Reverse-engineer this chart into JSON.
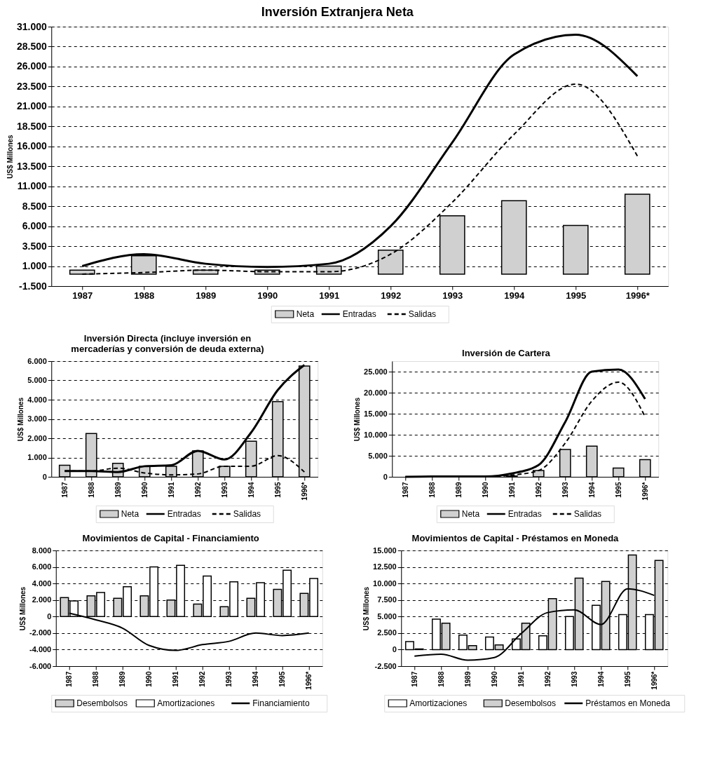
{
  "chart_data": [
    {
      "type": "bar",
      "title": "Inversión Extranjera Neta",
      "ylabel": "US$ Millones",
      "categories": [
        "1987",
        "1988",
        "1989",
        "1990",
        "1991",
        "1992",
        "1993",
        "1994",
        "1995",
        "1996*"
      ],
      "ylim": [
        -1500,
        31000
      ],
      "yticks": [
        {
          "value": -1500,
          "label": "-1.500"
        },
        {
          "value": 1000,
          "label": "1.000"
        },
        {
          "value": 3500,
          "label": "3.500"
        },
        {
          "value": 6000,
          "label": "6.000"
        },
        {
          "value": 8500,
          "label": "8.500"
        },
        {
          "value": 11000,
          "label": "11.000"
        },
        {
          "value": 13500,
          "label": "13.500"
        },
        {
          "value": 16000,
          "label": "16.000"
        },
        {
          "value": 18500,
          "label": "18.500"
        },
        {
          "value": 21000,
          "label": "21.000"
        },
        {
          "value": 23500,
          "label": "23.500"
        },
        {
          "value": 26000,
          "label": "26.000"
        },
        {
          "value": 28500,
          "label": "28.500"
        },
        {
          "value": 31000,
          "label": "31.000"
        }
      ],
      "grid": "y",
      "legend": "bottom",
      "series": [
        {
          "name": "Neta",
          "type": "bar",
          "color": "#d0d0d0",
          "values": [
            500,
            2300,
            500,
            500,
            1000,
            3000,
            7300,
            9200,
            6100,
            10000
          ]
        },
        {
          "name": "Entradas",
          "type": "line",
          "color": "#000000",
          "line_style": "solid",
          "values": [
            1000,
            2500,
            1300,
            900,
            1300,
            6000,
            16500,
            27500,
            30000,
            24800
          ]
        },
        {
          "name": "Salidas",
          "type": "line",
          "color": "#000000",
          "line_style": "dashed",
          "values": [
            0,
            200,
            500,
            300,
            300,
            2500,
            9000,
            17500,
            23800,
            14800
          ]
        }
      ]
    },
    {
      "type": "bar",
      "title": "Inversión Directa (incluye inversión en mercaderías y conversión de deuda externa)",
      "ylabel": "US$ Millones",
      "categories": [
        "1987",
        "1988",
        "1989",
        "1990",
        "1991",
        "1992",
        "1993",
        "1994",
        "1995",
        "1996*"
      ],
      "ylim": [
        0,
        6000
      ],
      "yticks": [
        0,
        {
          "value": 1000,
          "label": "1.000"
        },
        {
          "value": 2000,
          "label": "2.000"
        },
        {
          "value": 3000,
          "label": "3.000"
        },
        {
          "value": 4000,
          "label": "4.000"
        },
        {
          "value": 5000,
          "label": "5.000"
        },
        {
          "value": 6000,
          "label": "6.000"
        }
      ],
      "grid": "y",
      "legend": "bottom",
      "series": [
        {
          "name": "Neta",
          "type": "bar",
          "color": "#d0d0d0",
          "values": [
            600,
            2250,
            700,
            550,
            550,
            1350,
            550,
            1850,
            3900,
            5750
          ]
        },
        {
          "name": "Entradas",
          "type": "line",
          "color": "#000000",
          "line_style": "solid",
          "values": [
            300,
            300,
            250,
            550,
            600,
            1350,
            900,
            2300,
            4500,
            5800
          ]
        },
        {
          "name": "Salidas",
          "type": "line",
          "color": "#000000",
          "line_style": "dashed",
          "values": [
            300,
            300,
            450,
            200,
            100,
            150,
            550,
            550,
            1100,
            250
          ]
        }
      ]
    },
    {
      "type": "bar",
      "title": "Inversión de Cartera",
      "ylabel": "US$ Millones",
      "categories": [
        "1987",
        "1988",
        "1989",
        "1990",
        "1991",
        "1992",
        "1993",
        "1994",
        "1995",
        "1996*"
      ],
      "ylim": [
        0,
        27500
      ],
      "yticks": [
        0,
        {
          "value": 5000,
          "label": "5.000"
        },
        {
          "value": 10000,
          "label": "10.000"
        },
        {
          "value": 15000,
          "label": "15.000"
        },
        {
          "value": 20000,
          "label": "20.000"
        },
        {
          "value": 25000,
          "label": "25.000"
        }
      ],
      "grid": "y",
      "legend": "bottom",
      "series": [
        {
          "name": "Neta",
          "type": "bar",
          "color": "#d0d0d0",
          "values": [
            null,
            null,
            null,
            null,
            200,
            1500,
            6500,
            7300,
            2100,
            4100
          ]
        },
        {
          "name": "Entradas",
          "type": "line",
          "color": "#000000",
          "line_style": "solid",
          "values": [
            0,
            100,
            100,
            100,
            800,
            2800,
            13000,
            25000,
            25500,
            18500
          ]
        },
        {
          "name": "Salidas",
          "type": "line",
          "color": "#000000",
          "line_style": "dashed",
          "values": [
            0,
            0,
            0,
            0,
            400,
            1500,
            8000,
            18000,
            22500,
            14300
          ]
        }
      ]
    },
    {
      "type": "bar",
      "title": "Movimientos de Capital - Financiamiento",
      "ylabel": "US$ Millones",
      "categories": [
        "1987",
        "1988",
        "1989",
        "1990",
        "1991",
        "1992",
        "1993",
        "1994",
        "1995",
        "1996*"
      ],
      "ylim": [
        -6000,
        8000
      ],
      "yticks": [
        {
          "value": -6000,
          "label": "-6.000"
        },
        {
          "value": -4000,
          "label": "-4.000"
        },
        {
          "value": -2000,
          "label": "-2.000"
        },
        0,
        {
          "value": 2000,
          "label": "2.000"
        },
        {
          "value": 4000,
          "label": "4.000"
        },
        {
          "value": 6000,
          "label": "6.000"
        },
        {
          "value": 8000,
          "label": "8.000"
        }
      ],
      "grid": "y",
      "legend": "bottom",
      "series": [
        {
          "name": "Desembolsos",
          "type": "bar",
          "color": "#d0d0d0",
          "values": [
            2300,
            2500,
            2200,
            2500,
            2000,
            1500,
            1200,
            2200,
            3300,
            2800
          ]
        },
        {
          "name": "Amortizaciones",
          "type": "bar",
          "color": "#ffffff",
          "values": [
            1900,
            2900,
            3600,
            6000,
            6200,
            4900,
            4200,
            4100,
            5600,
            4600
          ]
        },
        {
          "name": "Financiamiento",
          "type": "line",
          "color": "#000000",
          "line_style": "solid",
          "values": [
            400,
            -400,
            -1400,
            -3500,
            -4100,
            -3400,
            -3000,
            -2000,
            -2300,
            -2000
          ]
        }
      ]
    },
    {
      "type": "bar",
      "title": "Movimientos de Capital - Préstamos en Moneda",
      "ylabel": "US$ Millones",
      "categories": [
        "1987",
        "1988",
        "1989",
        "1990",
        "1991",
        "1992",
        "1993",
        "1994",
        "1995",
        "1996*"
      ],
      "ylim": [
        -2500,
        15000
      ],
      "yticks": [
        {
          "value": -2500,
          "label": "-2.500"
        },
        0,
        {
          "value": 2500,
          "label": "2.500"
        },
        {
          "value": 5000,
          "label": "5.000"
        },
        {
          "value": 7500,
          "label": "7.500"
        },
        {
          "value": 10000,
          "label": "10.000"
        },
        {
          "value": 12500,
          "label": "12.500"
        },
        {
          "value": 15000,
          "label": "15.000"
        }
      ],
      "grid": "y",
      "legend": "bottom",
      "series": [
        {
          "name": "Amortizaciones",
          "type": "bar",
          "color": "#ffffff",
          "values": [
            1200,
            4600,
            2200,
            1900,
            1600,
            2100,
            5000,
            6700,
            5300,
            5300
          ]
        },
        {
          "name": "Desembolsos",
          "type": "bar",
          "color": "#d0d0d0",
          "values": [
            100,
            4000,
            600,
            700,
            4000,
            7700,
            10800,
            10300,
            14300,
            13500
          ]
        },
        {
          "name": "Préstamos en Moneda",
          "type": "line",
          "color": "#000000",
          "line_style": "solid",
          "values": [
            -1000,
            -700,
            -1600,
            -1200,
            2400,
            5600,
            6000,
            3800,
            9200,
            8200
          ]
        }
      ]
    }
  ]
}
